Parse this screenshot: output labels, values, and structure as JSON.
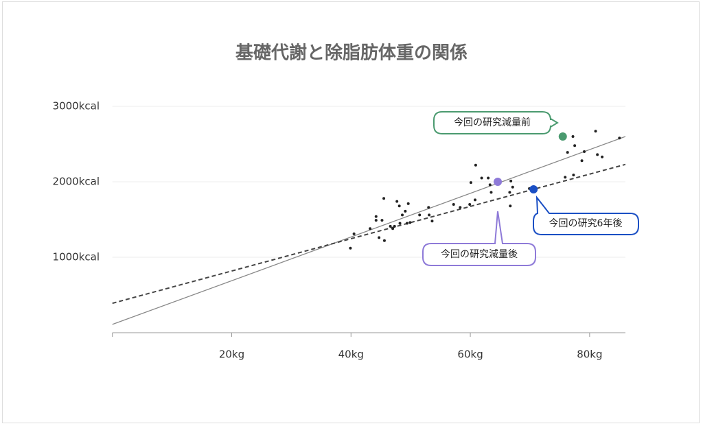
{
  "chart_data": {
    "type": "scatter",
    "title": "基礎代謝と除脂肪体重の関係",
    "xlim": [
      0,
      86
    ],
    "ylim": [
      0,
      3000
    ],
    "xticks": [
      {
        "value": 20,
        "label": "20kg"
      },
      {
        "value": 40,
        "label": "40kg"
      },
      {
        "value": 60,
        "label": "60kg"
      },
      {
        "value": 80,
        "label": "80kg"
      }
    ],
    "yticks": [
      {
        "value": 1000,
        "label": "1000kcal"
      },
      {
        "value": 2000,
        "label": "2000kcal"
      },
      {
        "value": 3000,
        "label": "3000kcal"
      }
    ],
    "grid": true,
    "series": [
      {
        "color": "#222222",
        "x": [
          39.9,
          40.5,
          43.2,
          44.2,
          44.2,
          44.7,
          45.2,
          45.5,
          45.6,
          46.6,
          47.0,
          47.3,
          47.7,
          48.1,
          48.2,
          48.6,
          49.1,
          49.4,
          49.6,
          49.9,
          51.5,
          53.0,
          53.1,
          53.6,
          57.2,
          58.3,
          59.9,
          60.1,
          60.8,
          60.9,
          61.9,
          63.0,
          63.3,
          63.5,
          66.6,
          66.8,
          67.1,
          66.7,
          69.9,
          75.9,
          76.3,
          77.3,
          77.2,
          77.5,
          78.7,
          79.1,
          81.0,
          81.3,
          82.1,
          85.0
        ],
        "values": [
          1120,
          1310,
          1380,
          1540,
          1490,
          1260,
          1490,
          1780,
          1220,
          1410,
          1380,
          1410,
          1740,
          1680,
          1450,
          1560,
          1610,
          1450,
          1710,
          1460,
          1560,
          1660,
          1560,
          1480,
          1700,
          1660,
          1700,
          1990,
          1760,
          2220,
          2050,
          2050,
          1960,
          1860,
          1860,
          2010,
          1930,
          1680,
          1910,
          2060,
          2390,
          2090,
          2600,
          2480,
          2280,
          2400,
          2670,
          2360,
          2330,
          2580
        ]
      }
    ],
    "fits": [
      {
        "color": "#888888",
        "style": "solid",
        "x": [
          0,
          86
        ],
        "values": [
          110,
          2600
        ]
      },
      {
        "color": "#444444",
        "style": "dashed",
        "x": [
          0,
          86
        ],
        "values": [
          390,
          2230
        ]
      }
    ],
    "annotations": [
      {
        "text": "今回の研究減量前",
        "x": 75.5,
        "y": 2600,
        "color": "#4a9a6f"
      },
      {
        "text": "今回の研究減量後",
        "x": 64.6,
        "y": 2000,
        "color": "#8e7ad8"
      },
      {
        "text": "今回の研究6年後",
        "x": 70.6,
        "y": 1900,
        "color": "#1a4fc4"
      }
    ]
  }
}
